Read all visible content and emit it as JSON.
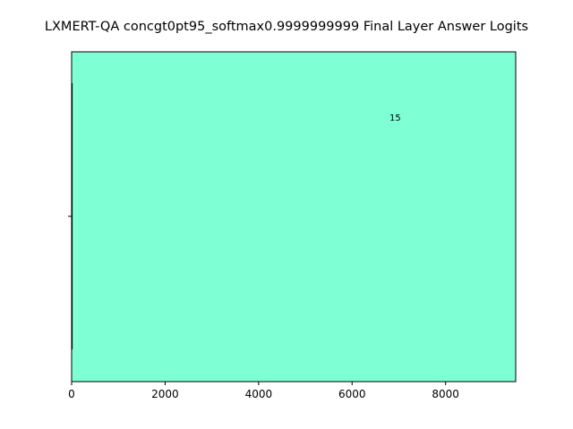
{
  "chart_data": {
    "type": "bar",
    "orientation": "horizontal",
    "title": "LXMERT-QA concgt0pt95_softmax0.9999999999 Final Layer Answer Logits",
    "xlabel": "",
    "ylabel": "",
    "xlim": [
      0,
      9500
    ],
    "x_ticks": [
      0,
      2000,
      4000,
      6000,
      8000
    ],
    "x_tick_labels": [
      "0",
      "2000",
      "4000",
      "6000",
      "8000"
    ],
    "bar_color": "#7fffd4",
    "grid": false,
    "legend": "none",
    "annotations": [
      {
        "text": "15",
        "x": 6800,
        "y": 0.8
      }
    ]
  }
}
